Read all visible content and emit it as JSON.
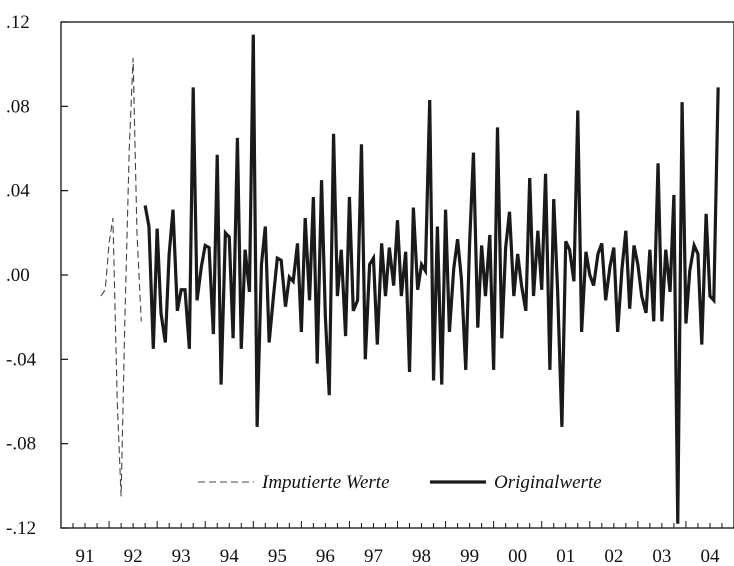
{
  "chart_data": {
    "type": "line",
    "title": "",
    "xlabel": "",
    "ylabel": "",
    "xlim": [
      1991.0,
      2005.0
    ],
    "ylim": [
      -0.12,
      0.12
    ],
    "grid": false,
    "legend_placement": "bottom-center",
    "y_ticks": [
      {
        "value": 0.12,
        "label": ".12"
      },
      {
        "value": 0.08,
        "label": ".08"
      },
      {
        "value": 0.04,
        "label": ".04"
      },
      {
        "value": 0.0,
        "label": ".00"
      },
      {
        "value": -0.04,
        "label": "-.04"
      },
      {
        "value": -0.08,
        "label": "-.08"
      },
      {
        "value": -0.12,
        "label": "-.12"
      }
    ],
    "x_ticks": [
      {
        "value": 1991.5,
        "label": "91"
      },
      {
        "value": 1992.5,
        "label": "92"
      },
      {
        "value": 1993.5,
        "label": "93"
      },
      {
        "value": 1994.5,
        "label": "94"
      },
      {
        "value": 1995.5,
        "label": "95"
      },
      {
        "value": 1996.5,
        "label": "96"
      },
      {
        "value": 1997.5,
        "label": "97"
      },
      {
        "value": 1998.5,
        "label": "98"
      },
      {
        "value": 1999.5,
        "label": "99"
      },
      {
        "value": 2000.5,
        "label": "00"
      },
      {
        "value": 2001.5,
        "label": "01"
      },
      {
        "value": 2002.5,
        "label": "02"
      },
      {
        "value": 2003.5,
        "label": "03"
      },
      {
        "value": 2004.5,
        "label": "04"
      }
    ],
    "series": [
      {
        "name": "Imputierte Werte",
        "style": "dashed",
        "color": "#444444",
        "points": [
          [
            1991.83,
            -0.01
          ],
          [
            1991.92,
            -0.007
          ],
          [
            1992.0,
            0.015
          ],
          [
            1992.08,
            0.027
          ],
          [
            1992.17,
            -0.06
          ],
          [
            1992.25,
            -0.105
          ],
          [
            1992.33,
            -0.02
          ],
          [
            1992.42,
            0.06
          ],
          [
            1992.5,
            0.103
          ],
          [
            1992.58,
            0.02
          ],
          [
            1992.67,
            -0.022
          ]
        ]
      },
      {
        "name": "Originalwerte",
        "style": "solid",
        "color": "#1a1a1a",
        "points": [
          [
            1992.75,
            0.033
          ],
          [
            1992.83,
            0.023
          ],
          [
            1992.92,
            -0.035
          ],
          [
            1993.0,
            0.022
          ],
          [
            1993.08,
            -0.018
          ],
          [
            1993.17,
            -0.032
          ],
          [
            1993.25,
            0.01
          ],
          [
            1993.33,
            0.031
          ],
          [
            1993.42,
            -0.017
          ],
          [
            1993.5,
            -0.007
          ],
          [
            1993.58,
            -0.007
          ],
          [
            1993.67,
            -0.035
          ],
          [
            1993.75,
            0.089
          ],
          [
            1993.83,
            -0.012
          ],
          [
            1993.92,
            0.004
          ],
          [
            1994.0,
            0.014
          ],
          [
            1994.08,
            0.013
          ],
          [
            1994.17,
            -0.028
          ],
          [
            1994.25,
            0.057
          ],
          [
            1994.33,
            -0.052
          ],
          [
            1994.42,
            0.02
          ],
          [
            1994.5,
            0.018
          ],
          [
            1994.58,
            -0.03
          ],
          [
            1994.67,
            0.065
          ],
          [
            1994.75,
            -0.035
          ],
          [
            1994.83,
            0.012
          ],
          [
            1994.92,
            -0.008
          ],
          [
            1995.0,
            0.114
          ],
          [
            1995.08,
            -0.072
          ],
          [
            1995.17,
            0.005
          ],
          [
            1995.25,
            0.023
          ],
          [
            1995.33,
            -0.032
          ],
          [
            1995.42,
            -0.01
          ],
          [
            1995.5,
            0.008
          ],
          [
            1995.58,
            0.007
          ],
          [
            1995.67,
            -0.015
          ],
          [
            1995.75,
            -0.001
          ],
          [
            1995.83,
            -0.003
          ],
          [
            1995.92,
            0.015
          ],
          [
            1996.0,
            -0.027
          ],
          [
            1996.08,
            0.027
          ],
          [
            1996.17,
            -0.012
          ],
          [
            1996.25,
            0.037
          ],
          [
            1996.33,
            -0.042
          ],
          [
            1996.42,
            0.045
          ],
          [
            1996.5,
            -0.02
          ],
          [
            1996.58,
            -0.057
          ],
          [
            1996.67,
            0.067
          ],
          [
            1996.75,
            -0.01
          ],
          [
            1996.83,
            0.012
          ],
          [
            1996.92,
            -0.029
          ],
          [
            1997.0,
            0.037
          ],
          [
            1997.08,
            -0.017
          ],
          [
            1997.17,
            -0.012
          ],
          [
            1997.25,
            0.062
          ],
          [
            1997.33,
            -0.04
          ],
          [
            1997.42,
            0.005
          ],
          [
            1997.5,
            0.008
          ],
          [
            1997.58,
            -0.033
          ],
          [
            1997.67,
            0.015
          ],
          [
            1997.75,
            -0.01
          ],
          [
            1997.83,
            0.013
          ],
          [
            1997.92,
            -0.005
          ],
          [
            1998.0,
            0.026
          ],
          [
            1998.08,
            -0.01
          ],
          [
            1998.17,
            0.011
          ],
          [
            1998.25,
            -0.046
          ],
          [
            1998.33,
            0.032
          ],
          [
            1998.42,
            -0.007
          ],
          [
            1998.5,
            0.005
          ],
          [
            1998.58,
            0.002
          ],
          [
            1998.67,
            0.083
          ],
          [
            1998.75,
            -0.05
          ],
          [
            1998.83,
            0.023
          ],
          [
            1998.92,
            -0.052
          ],
          [
            1999.0,
            0.031
          ],
          [
            1999.08,
            -0.027
          ],
          [
            1999.17,
            0.003
          ],
          [
            1999.25,
            0.017
          ],
          [
            1999.33,
            -0.002
          ],
          [
            1999.42,
            -0.045
          ],
          [
            1999.5,
            0.015
          ],
          [
            1999.58,
            0.058
          ],
          [
            1999.67,
            -0.025
          ],
          [
            1999.75,
            0.014
          ],
          [
            1999.83,
            -0.01
          ],
          [
            1999.92,
            0.019
          ],
          [
            2000.0,
            -0.045
          ],
          [
            2000.08,
            0.07
          ],
          [
            2000.17,
            -0.03
          ],
          [
            2000.25,
            0.013
          ],
          [
            2000.33,
            0.03
          ],
          [
            2000.42,
            -0.01
          ],
          [
            2000.5,
            0.01
          ],
          [
            2000.58,
            -0.005
          ],
          [
            2000.67,
            -0.017
          ],
          [
            2000.75,
            0.046
          ],
          [
            2000.83,
            -0.01
          ],
          [
            2000.92,
            0.021
          ],
          [
            2001.0,
            -0.007
          ],
          [
            2001.08,
            0.048
          ],
          [
            2001.17,
            -0.045
          ],
          [
            2001.25,
            0.036
          ],
          [
            2001.33,
            -0.007
          ],
          [
            2001.42,
            -0.072
          ],
          [
            2001.5,
            0.016
          ],
          [
            2001.58,
            0.012
          ],
          [
            2001.67,
            -0.003
          ],
          [
            2001.75,
            0.078
          ],
          [
            2001.83,
            -0.027
          ],
          [
            2001.92,
            0.011
          ],
          [
            2002.0,
            0.0
          ],
          [
            2002.08,
            -0.005
          ],
          [
            2002.17,
            0.01
          ],
          [
            2002.25,
            0.015
          ],
          [
            2002.33,
            -0.012
          ],
          [
            2002.42,
            0.004
          ],
          [
            2002.5,
            0.013
          ],
          [
            2002.58,
            -0.027
          ],
          [
            2002.67,
            0.003
          ],
          [
            2002.75,
            0.021
          ],
          [
            2002.83,
            -0.016
          ],
          [
            2002.92,
            0.014
          ],
          [
            2003.0,
            0.005
          ],
          [
            2003.08,
            -0.01
          ],
          [
            2003.17,
            -0.018
          ],
          [
            2003.25,
            0.012
          ],
          [
            2003.33,
            -0.022
          ],
          [
            2003.42,
            0.053
          ],
          [
            2003.5,
            -0.022
          ],
          [
            2003.58,
            0.012
          ],
          [
            2003.67,
            -0.008
          ],
          [
            2003.75,
            0.038
          ],
          [
            2003.83,
            -0.118
          ],
          [
            2003.92,
            0.082
          ],
          [
            2004.0,
            -0.023
          ],
          [
            2004.08,
            0.002
          ],
          [
            2004.17,
            0.014
          ],
          [
            2004.25,
            0.01
          ],
          [
            2004.33,
            -0.033
          ],
          [
            2004.42,
            0.029
          ],
          [
            2004.5,
            -0.01
          ],
          [
            2004.58,
            -0.012
          ],
          [
            2004.67,
            0.089
          ]
        ]
      }
    ]
  }
}
